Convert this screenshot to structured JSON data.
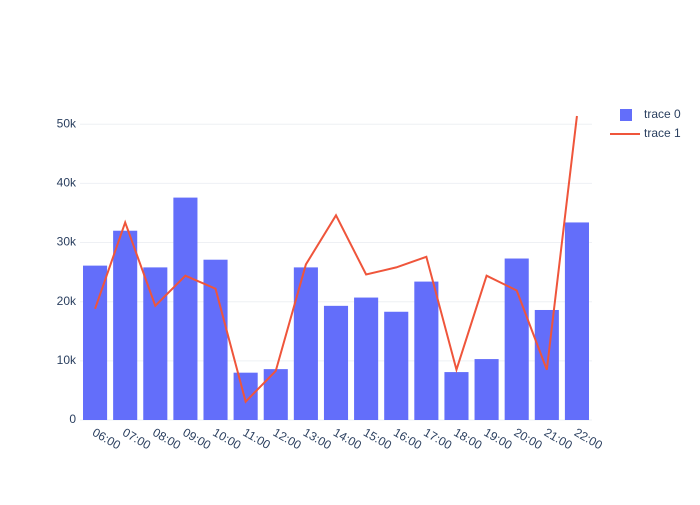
{
  "chart_data": {
    "type": "bar-line",
    "categories": [
      "06:00",
      "07:00",
      "08:00",
      "09:00",
      "10:00",
      "11:00",
      "12:00",
      "13:00",
      "14:00",
      "15:00",
      "16:00",
      "17:00",
      "18:00",
      "19:00",
      "20:00",
      "21:00",
      "22:00"
    ],
    "series": [
      {
        "name": "trace 0",
        "type": "bar",
        "color": "#636efa",
        "values": [
          26100,
          32000,
          25800,
          37600,
          27100,
          8000,
          8600,
          25800,
          19300,
          20700,
          18300,
          23400,
          8100,
          10300,
          27300,
          18600,
          33400
        ]
      },
      {
        "name": "trace 1",
        "type": "line",
        "color": "#EF553B",
        "values": [
          18800,
          33400,
          19300,
          24400,
          22200,
          3100,
          8300,
          26300,
          34600,
          24600,
          25800,
          27600,
          8500,
          24400,
          21900,
          8500,
          51400
        ]
      }
    ],
    "ylim": [
      0,
      54100
    ],
    "yticks": [
      0,
      {
        "value": 10000,
        "label": "10k"
      },
      {
        "value": 20000,
        "label": "20k"
      },
      {
        "value": 30000,
        "label": "30k"
      },
      {
        "value": 40000,
        "label": "40k"
      },
      {
        "value": 50000,
        "label": "50k"
      }
    ],
    "grid": true,
    "legend": "top-right"
  }
}
